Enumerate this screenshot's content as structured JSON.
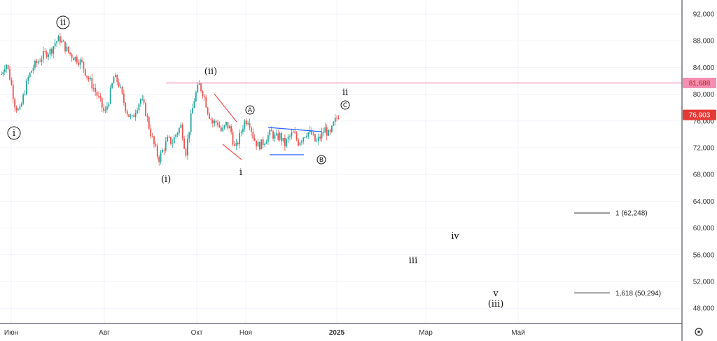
{
  "chart_data": {
    "type": "candlestick",
    "y_ticks": [
      "92,000",
      "88,000",
      "84,000",
      "80,000",
      "76,000",
      "72,000",
      "68,000",
      "64,000",
      "60,000",
      "56,000",
      "52,000",
      "48,000"
    ],
    "y_range": [
      44500,
      94000
    ],
    "x_labels": [
      {
        "text": "Июн",
        "bold": false
      },
      {
        "text": "Авг",
        "bold": false
      },
      {
        "text": "Окт",
        "bold": false
      },
      {
        "text": "Ноя",
        "bold": false
      },
      {
        "text": "2025",
        "bold": true
      },
      {
        "text": "Мар",
        "bold": false
      },
      {
        "text": "Май",
        "bold": false
      }
    ],
    "colors": {
      "up": "#26a69a",
      "down": "#ef5350",
      "price_tag": "#e53935",
      "horizontal_line": "#f48fb1",
      "triangle": "#ef5350",
      "channel": "#2962ff"
    },
    "horizontal_line": {
      "price": 81688,
      "label": "81,688"
    },
    "last_price": {
      "price": 76903,
      "label": "76,903"
    },
    "price_path": [
      [
        0,
        83000
      ],
      [
        1,
        84800
      ],
      [
        2,
        82200
      ],
      [
        3,
        78500
      ],
      [
        4,
        77200
      ],
      [
        5,
        80000
      ],
      [
        6,
        82500
      ],
      [
        7,
        84000
      ],
      [
        8,
        84800
      ],
      [
        9,
        85600
      ],
      [
        10,
        86200
      ],
      [
        11,
        86500
      ],
      [
        12,
        87800
      ],
      [
        13,
        88300
      ],
      [
        14,
        87200
      ],
      [
        15,
        86200
      ],
      [
        16,
        85600
      ],
      [
        17,
        85200
      ],
      [
        18,
        84500
      ],
      [
        19,
        82800
      ],
      [
        20,
        81600
      ],
      [
        21,
        80300
      ],
      [
        22,
        78800
      ],
      [
        23,
        77000
      ],
      [
        24,
        79500
      ],
      [
        25,
        82500
      ],
      [
        26,
        81800
      ],
      [
        27,
        79300
      ],
      [
        28,
        77300
      ],
      [
        29,
        76100
      ],
      [
        30,
        78000
      ],
      [
        31,
        79300
      ],
      [
        32,
        77600
      ],
      [
        33,
        74700
      ],
      [
        34,
        72300
      ],
      [
        35,
        70300
      ],
      [
        36,
        71800
      ],
      [
        37,
        73200
      ],
      [
        38,
        72800
      ],
      [
        39,
        74300
      ],
      [
        40,
        75300
      ],
      [
        41,
        71200
      ],
      [
        42,
        75800
      ],
      [
        43,
        79600
      ],
      [
        44,
        81400
      ],
      [
        45,
        80000
      ],
      [
        46,
        77300
      ],
      [
        47,
        75700
      ],
      [
        48,
        75900
      ],
      [
        49,
        74300
      ],
      [
        50,
        75500
      ],
      [
        51,
        74700
      ],
      [
        52,
        71600
      ],
      [
        53,
        73700
      ],
      [
        54,
        75900
      ],
      [
        55,
        76300
      ],
      [
        56,
        73700
      ],
      [
        57,
        72300
      ],
      [
        58,
        72600
      ],
      [
        59,
        73500
      ],
      [
        60,
        74300
      ],
      [
        61,
        73400
      ],
      [
        62,
        73800
      ],
      [
        63,
        72400
      ],
      [
        64,
        73600
      ],
      [
        65,
        74200
      ],
      [
        66,
        72800
      ],
      [
        67,
        73600
      ],
      [
        68,
        74400
      ],
      [
        69,
        74000
      ],
      [
        70,
        72700
      ],
      [
        71,
        73700
      ],
      [
        72,
        74800
      ],
      [
        73,
        73700
      ],
      [
        74,
        75700
      ],
      [
        75,
        76900
      ]
    ],
    "wave_labels": [
      {
        "text": "i",
        "circled": true
      },
      {
        "text": "ii",
        "circled": true
      },
      {
        "text": "(i)",
        "circled": false
      },
      {
        "text": "(ii)",
        "circled": false
      },
      {
        "text": "i",
        "circled": false
      },
      {
        "text": "A",
        "circled": true
      },
      {
        "text": "B",
        "circled": true
      },
      {
        "text": "C",
        "circled": true
      },
      {
        "text": "ii",
        "circled": false
      },
      {
        "text": "iii",
        "circled": false
      },
      {
        "text": "iv",
        "circled": false
      },
      {
        "text": "v",
        "circled": false
      },
      {
        "text": "(iii)",
        "circled": false
      }
    ],
    "fib_levels": [
      {
        "price": 62248,
        "label": "1 (62,248)"
      },
      {
        "price": 50294,
        "label": "1,618 (50,294)"
      }
    ]
  },
  "toolbar": {
    "settings_icon": "gear-icon"
  }
}
